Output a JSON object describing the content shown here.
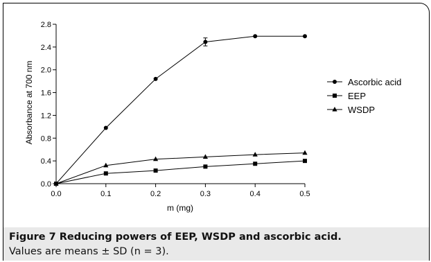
{
  "chart_data": {
    "type": "line",
    "xlabel": "m (mg)",
    "ylabel": "Absorbance at 700 nm",
    "xlim": [
      0.0,
      0.5
    ],
    "ylim": [
      0.0,
      2.8
    ],
    "xticks": [
      "0.0",
      "0.1",
      "0.2",
      "0.3",
      "0.4",
      "0.5"
    ],
    "yticks": [
      "0.0",
      "0.4",
      "0.8",
      "1.2",
      "1.6",
      "2.0",
      "2.4",
      "2.8"
    ],
    "x": [
      0.0,
      0.1,
      0.2,
      0.3,
      0.4,
      0.5
    ],
    "legend_position": "right",
    "grid": false,
    "series": [
      {
        "name": "Ascorbic acid",
        "marker": "circle",
        "values": [
          0.0,
          0.98,
          1.84,
          2.49,
          2.59,
          2.59
        ],
        "errors": [
          0,
          0,
          0,
          0.07,
          0,
          0
        ]
      },
      {
        "name": "EEP",
        "marker": "square",
        "values": [
          0.0,
          0.18,
          0.23,
          0.3,
          0.35,
          0.4
        ],
        "errors": [
          0,
          0,
          0,
          0,
          0,
          0
        ]
      },
      {
        "name": "WSDP",
        "marker": "triangle",
        "values": [
          0.0,
          0.32,
          0.43,
          0.47,
          0.51,
          0.54
        ],
        "errors": [
          0,
          0,
          0,
          0,
          0,
          0
        ]
      }
    ]
  },
  "caption": {
    "title": "Figure 7 Reducing powers of EEP, WSDP and ascorbic acid.",
    "text": "Values are means ± SD (n = 3)."
  }
}
